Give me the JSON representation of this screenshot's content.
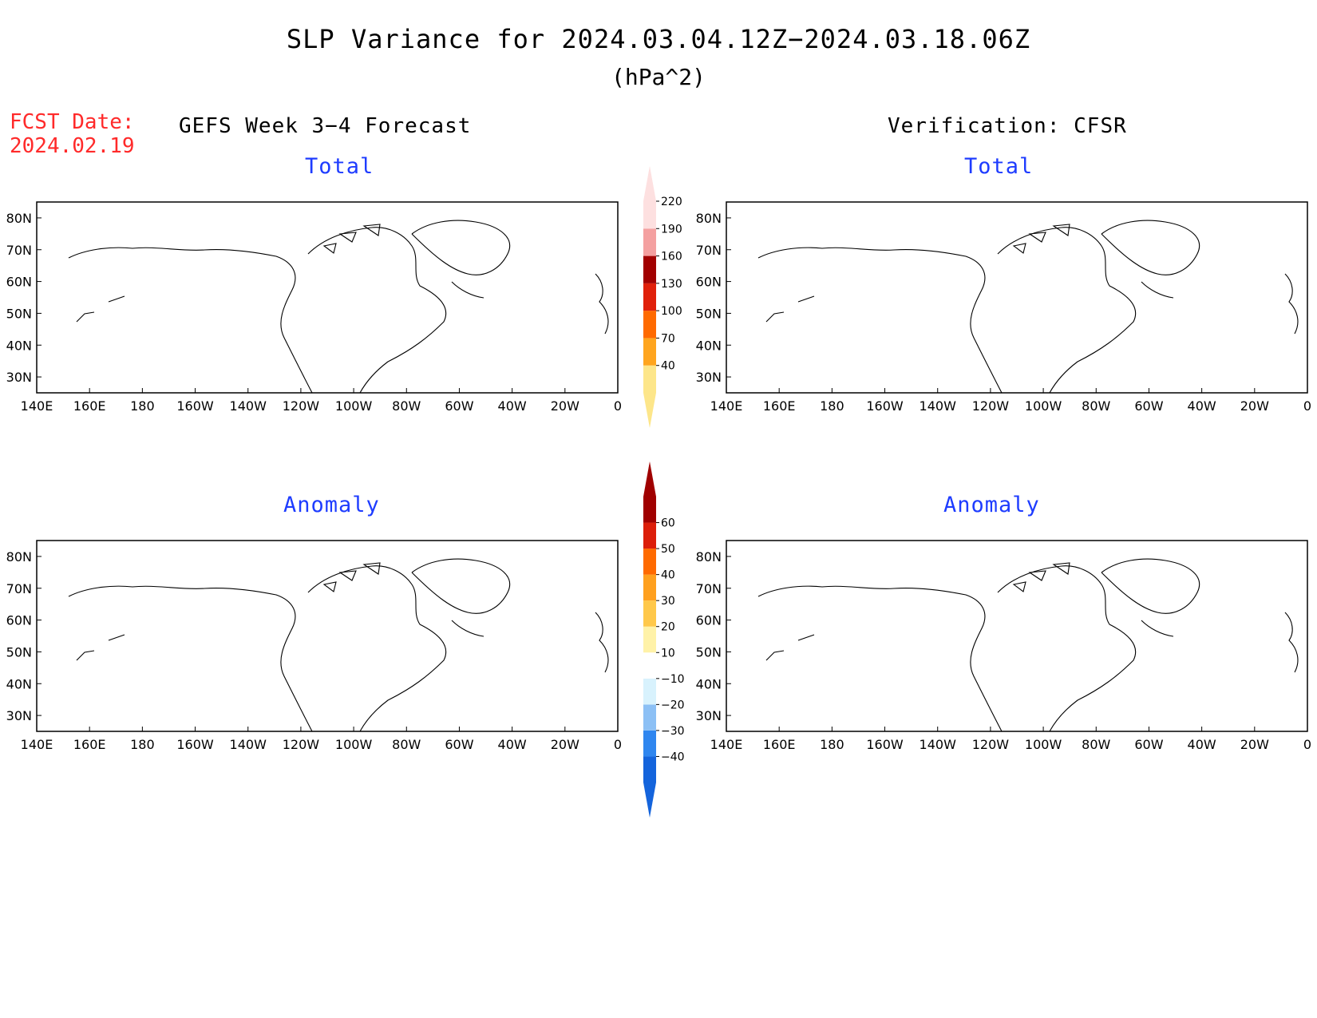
{
  "header": {
    "title": "SLP Variance for 2024.03.04.12Z−2024.03.18.06Z",
    "units": "(hPa^2)",
    "fcst_label": "FCST Date:",
    "fcst_date": "2024.02.19"
  },
  "columns": {
    "left_title": "GEFS Week 3−4 Forecast",
    "right_title": "Verification: CFSR"
  },
  "panels": {
    "gefs_total": {
      "label": "Total"
    },
    "cfsr_total": {
      "label": "Total"
    },
    "gefs_anomaly": {
      "label": "Anomaly"
    },
    "cfsr_anomaly": {
      "label": "Anomaly"
    }
  },
  "axes": {
    "lon_ticks": [
      "140E",
      "160E",
      "180",
      "160W",
      "140W",
      "120W",
      "100W",
      "80W",
      "60W",
      "40W",
      "20W",
      "0"
    ],
    "lat_ticks": [
      "80N",
      "70N",
      "60N",
      "50N",
      "40N",
      "30N"
    ],
    "lon_range_deg": [
      140,
      360
    ],
    "lat_range_deg": [
      25,
      85
    ]
  },
  "colorbars": {
    "total": {
      "levels": [
        "40",
        "70",
        "100",
        "130",
        "160",
        "190",
        "220"
      ],
      "colors": [
        "#fde68a",
        "#ffa51e",
        "#ff6a00",
        "#e0200a",
        "#a20000",
        "#f4a0a0",
        "#fde0e0"
      ]
    },
    "anomaly": {
      "levels": [
        "−40",
        "−30",
        "−20",
        "−10",
        "10",
        "20",
        "30",
        "40",
        "50",
        "60"
      ],
      "colors": [
        "#1464dc",
        "#2f86ef",
        "#8cc0f5",
        "#d8f2fd",
        "#ffffff",
        "#fff2a8",
        "#ffc84a",
        "#ffa01e",
        "#ff6a00",
        "#dc1e0a",
        "#a00000"
      ]
    }
  }
}
